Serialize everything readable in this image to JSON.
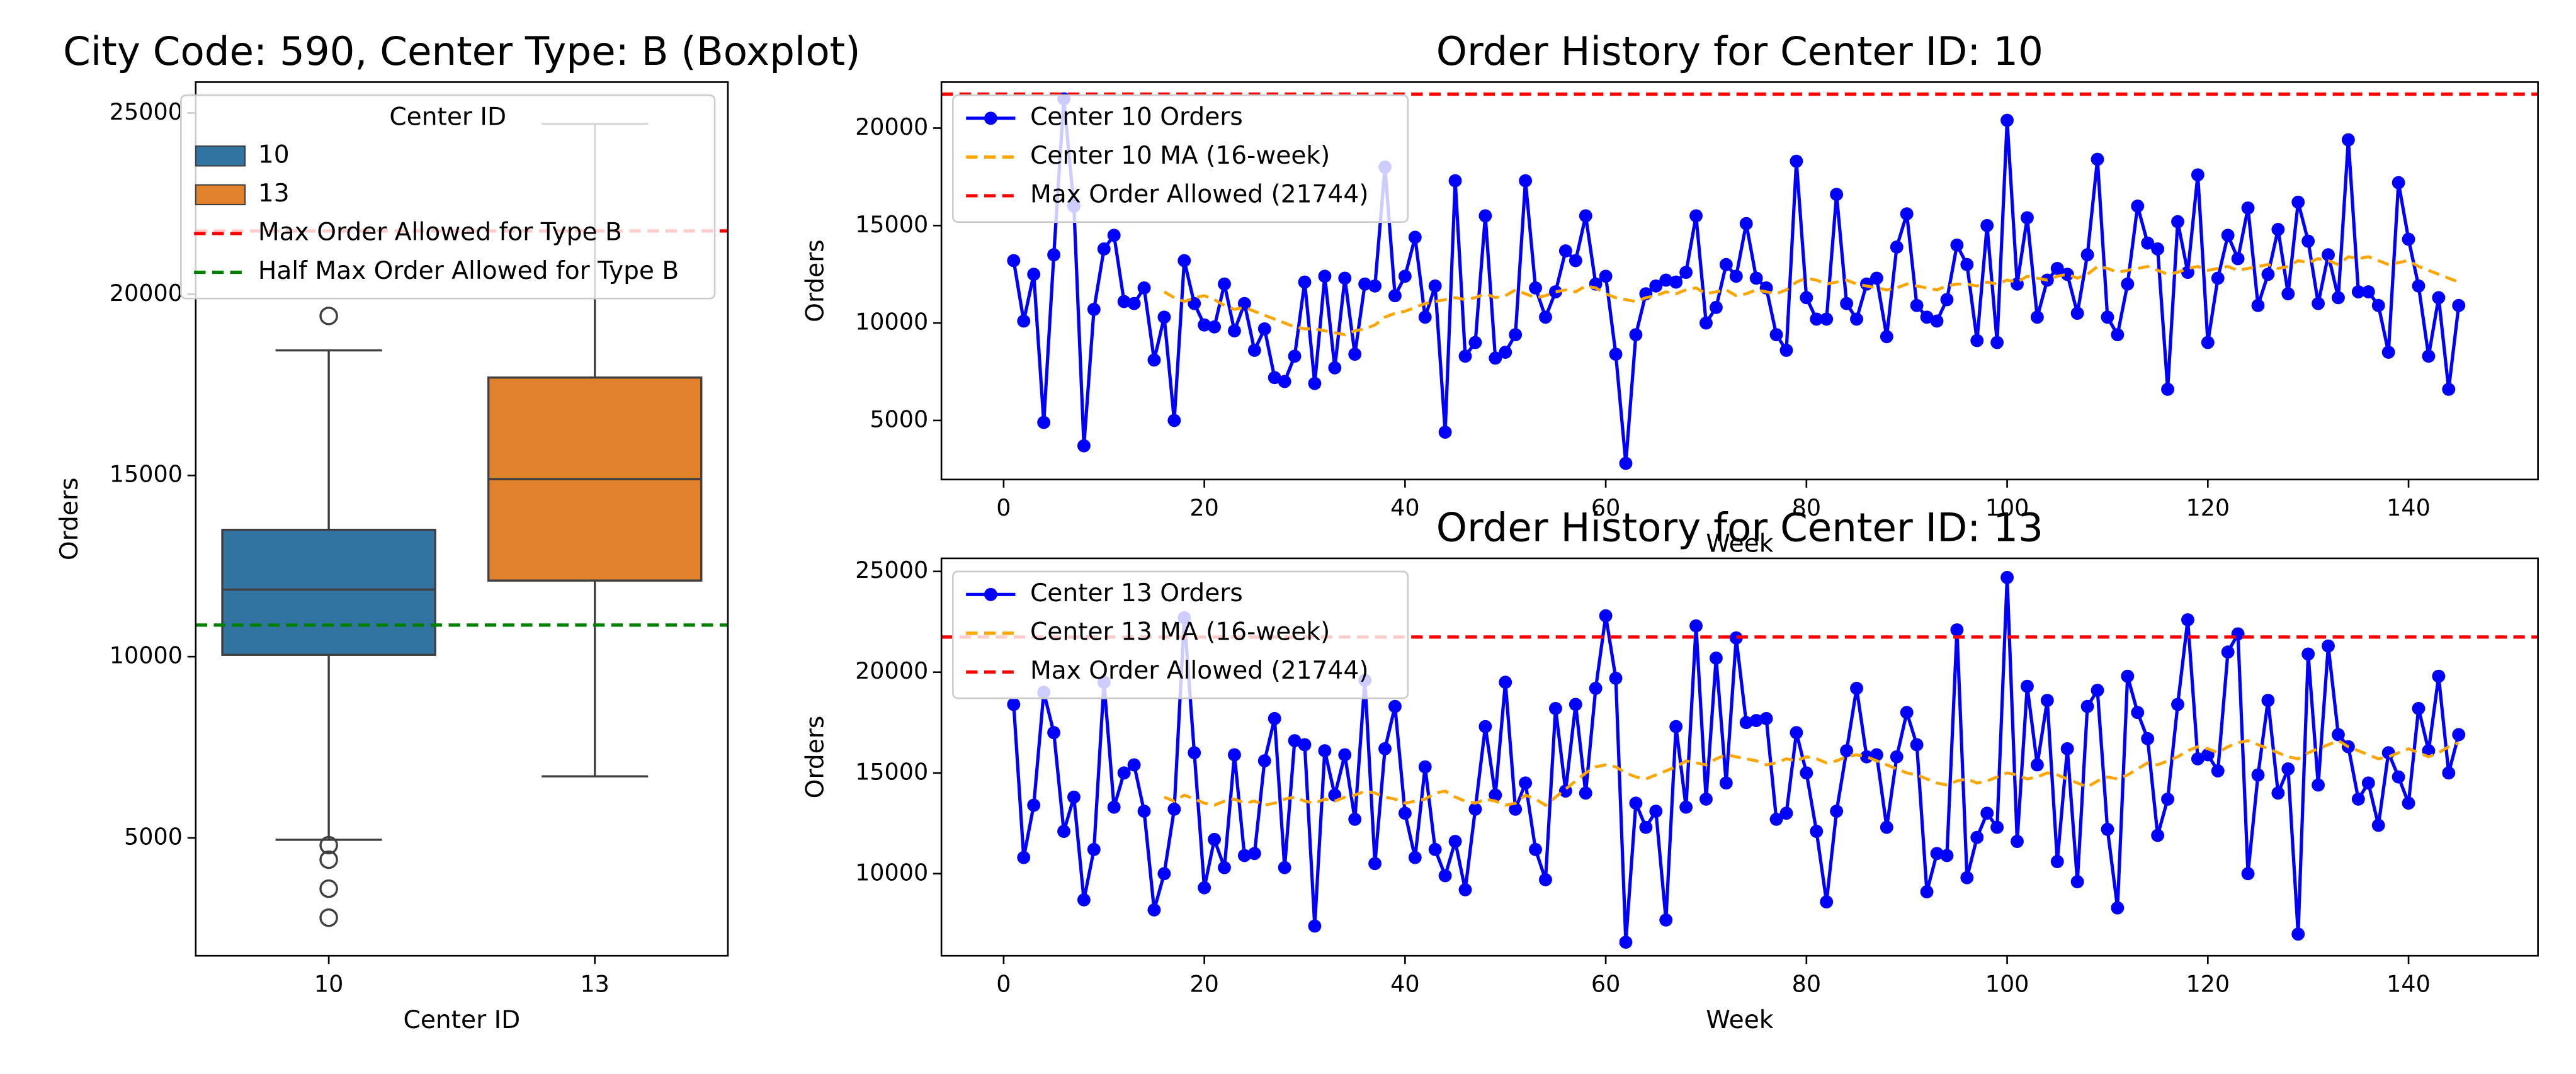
{
  "chart_data": [
    {
      "type": "box",
      "title": "City Code: 590, Center Type: B (Boxplot)",
      "xlabel": "Center ID",
      "ylabel": "Orders",
      "categories": [
        "10",
        "13"
      ],
      "boxes": [
        {
          "whislo": 4950,
          "q1": 10050,
          "med": 11850,
          "q3": 13500,
          "whishi": 18450,
          "fliers": [
            19400,
            4800,
            4400,
            3600,
            2800
          ],
          "color": "#3274a1"
        },
        {
          "whislo": 6700,
          "q1": 12100,
          "med": 14900,
          "q3": 17700,
          "whishi": 24700,
          "fliers": [],
          "color": "#e1812c"
        }
      ],
      "ylim": [
        1750,
        25850
      ],
      "yticks": [
        5000,
        10000,
        15000,
        20000,
        25000
      ],
      "hlines": [
        {
          "name": "Max Order Allowed for Type B",
          "value": 21744,
          "color": "#ff0000"
        },
        {
          "name": "Half Max Order Allowed for Type B",
          "value": 10872,
          "color": "#008000"
        }
      ],
      "legend_title": "Center ID",
      "legend": "upper left"
    },
    {
      "type": "line",
      "title": "Order History for Center ID: 10",
      "xlabel": "Week",
      "ylabel": "Orders",
      "x": [
        1,
        2,
        3,
        4,
        5,
        6,
        7,
        8,
        9,
        10,
        11,
        12,
        13,
        14,
        15,
        16,
        17,
        18,
        19,
        20,
        21,
        22,
        23,
        24,
        25,
        26,
        27,
        28,
        29,
        30,
        31,
        32,
        33,
        34,
        35,
        36,
        37,
        38,
        39,
        40,
        41,
        42,
        43,
        44,
        45,
        46,
        47,
        48,
        49,
        50,
        51,
        52,
        53,
        54,
        55,
        56,
        57,
        58,
        59,
        60,
        61,
        62,
        63,
        64,
        65,
        66,
        67,
        68,
        69,
        70,
        71,
        72,
        73,
        74,
        75,
        76,
        77,
        78,
        79,
        80,
        81,
        82,
        83,
        84,
        85,
        86,
        87,
        88,
        89,
        90,
        91,
        92,
        93,
        94,
        95,
        96,
        97,
        98,
        99,
        100,
        101,
        102,
        103,
        104,
        105,
        106,
        107,
        108,
        109,
        110,
        111,
        112,
        113,
        114,
        115,
        116,
        117,
        118,
        119,
        120,
        121,
        122,
        123,
        124,
        125,
        126,
        127,
        128,
        129,
        130,
        131,
        132,
        133,
        134,
        135,
        136,
        137,
        138,
        139,
        140,
        141,
        142,
        143,
        144,
        145
      ],
      "series": [
        {
          "name": "Center 10 Orders",
          "color": "#0000ff",
          "linestyle": "solid",
          "marker": "o",
          "values": [
            13200,
            10100,
            12500,
            4900,
            13500,
            21500,
            16000,
            3700,
            10700,
            13800,
            14500,
            11100,
            11000,
            11800,
            8100,
            10300,
            5000,
            13200,
            11000,
            9900,
            9800,
            12000,
            9600,
            11000,
            8600,
            9700,
            7200,
            7000,
            8300,
            12100,
            6900,
            12400,
            7700,
            12300,
            8400,
            12000,
            11900,
            18000,
            11400,
            12400,
            14400,
            10300,
            11900,
            4400,
            17300,
            8300,
            9000,
            15500,
            8200,
            8500,
            9400,
            17300,
            11800,
            10300,
            11600,
            13700,
            13200,
            15500,
            12000,
            12400,
            8400,
            2800,
            9400,
            11500,
            11900,
            12200,
            12100,
            12600,
            15500,
            10000,
            10800,
            13000,
            12400,
            15100,
            12300,
            11800,
            9400,
            8600,
            18300,
            11300,
            10200,
            10200,
            16600,
            11000,
            10200,
            12000,
            12300,
            9300,
            13900,
            15600,
            10900,
            10300,
            10100,
            11200,
            14000,
            13000,
            9100,
            15000,
            9000,
            20400,
            12000,
            15400,
            10300,
            12200,
            12800,
            12500,
            10500,
            13500,
            18400,
            10300,
            9400,
            12000,
            16000,
            14100,
            13800,
            6600,
            15200,
            12600,
            17600,
            9000,
            12300,
            14500,
            13300,
            15900,
            10900,
            12500,
            14800,
            11500,
            16200,
            14200,
            11000,
            13500,
            11300,
            19400,
            11600,
            11600,
            10900,
            8500,
            17200,
            14300,
            11900,
            8300,
            11300,
            6600,
            10900
          ]
        },
        {
          "name": "Center 10 MA (16-week)",
          "color": "#ffa500",
          "linestyle": "dashed",
          "marker": "none",
          "values": [
            null,
            null,
            null,
            null,
            null,
            null,
            null,
            null,
            null,
            null,
            null,
            null,
            null,
            null,
            null,
            11600,
            11300,
            11100,
            11300,
            11400,
            11200,
            10900,
            10700,
            10800,
            10600,
            10400,
            10200,
            10000,
            9800,
            9700,
            9700,
            9600,
            9500,
            9400,
            9600,
            9700,
            9900,
            10300,
            10500,
            10600,
            10800,
            11000,
            11100,
            11200,
            11300,
            11200,
            11300,
            11500,
            11300,
            11400,
            11700,
            11500,
            11300,
            11400,
            11600,
            11700,
            11600,
            11900,
            11800,
            11500,
            11300,
            11200,
            11100,
            11300,
            11400,
            11600,
            11500,
            11700,
            11800,
            11500,
            11600,
            11700,
            11400,
            11500,
            11700,
            11600,
            11500,
            11700,
            12100,
            12300,
            12200,
            12000,
            12100,
            12200,
            12000,
            11900,
            11800,
            11700,
            11800,
            12000,
            11900,
            11800,
            11700,
            11900,
            12000,
            12000,
            11900,
            12100,
            12000,
            12200,
            12100,
            12400,
            12300,
            12200,
            12400,
            12500,
            12300,
            12500,
            12900,
            12800,
            12600,
            12700,
            12800,
            12900,
            12700,
            12500,
            12600,
            12800,
            12900,
            12700,
            12800,
            12900,
            12700,
            12800,
            12900,
            13000,
            12800,
            12900,
            13200,
            13100,
            13300,
            13200,
            13000,
            13400,
            13300,
            13400,
            13200,
            13000,
            13100,
            13200,
            12900,
            12700,
            12500,
            12300,
            12100
          ]
        }
      ],
      "hlines": [
        {
          "name": "Max Order Allowed (21744)",
          "value": 21744,
          "color": "#ff0000"
        }
      ],
      "xlim": [
        -6.2,
        152.9
      ],
      "xticks": [
        0,
        20,
        40,
        60,
        80,
        100,
        120,
        140
      ],
      "ylim": [
        1970,
        22360
      ],
      "yticks": [
        5000,
        10000,
        15000,
        20000
      ],
      "legend": "upper left"
    },
    {
      "type": "line",
      "title": "Order History for Center ID: 13",
      "xlabel": "Week",
      "ylabel": "Orders",
      "x": [
        1,
        2,
        3,
        4,
        5,
        6,
        7,
        8,
        9,
        10,
        11,
        12,
        13,
        14,
        15,
        16,
        17,
        18,
        19,
        20,
        21,
        22,
        23,
        24,
        25,
        26,
        27,
        28,
        29,
        30,
        31,
        32,
        33,
        34,
        35,
        36,
        37,
        38,
        39,
        40,
        41,
        42,
        43,
        44,
        45,
        46,
        47,
        48,
        49,
        50,
        51,
        52,
        53,
        54,
        55,
        56,
        57,
        58,
        59,
        60,
        61,
        62,
        63,
        64,
        65,
        66,
        67,
        68,
        69,
        70,
        71,
        72,
        73,
        74,
        75,
        76,
        77,
        78,
        79,
        80,
        81,
        82,
        83,
        84,
        85,
        86,
        87,
        88,
        89,
        90,
        91,
        92,
        93,
        94,
        95,
        96,
        97,
        98,
        99,
        100,
        101,
        102,
        103,
        104,
        105,
        106,
        107,
        108,
        109,
        110,
        111,
        112,
        113,
        114,
        115,
        116,
        117,
        118,
        119,
        120,
        121,
        122,
        123,
        124,
        125,
        126,
        127,
        128,
        129,
        130,
        131,
        132,
        133,
        134,
        135,
        136,
        137,
        138,
        139,
        140,
        141,
        142,
        143,
        144,
        145
      ],
      "series": [
        {
          "name": "Center 13 Orders",
          "color": "#0000ff",
          "linestyle": "solid",
          "marker": "o",
          "values": [
            18400,
            10800,
            13400,
            19000,
            17000,
            12100,
            13800,
            8700,
            11200,
            19500,
            13300,
            15000,
            15400,
            13100,
            8200,
            10000,
            13200,
            22700,
            16000,
            9300,
            11700,
            10300,
            15900,
            10900,
            11000,
            15600,
            17700,
            10300,
            16600,
            16400,
            7400,
            16100,
            13900,
            15900,
            12700,
            19600,
            10500,
            16200,
            18300,
            13000,
            10800,
            15300,
            11200,
            9900,
            11600,
            9200,
            13200,
            17300,
            13900,
            19500,
            13200,
            14500,
            11200,
            9700,
            18200,
            14100,
            18400,
            14000,
            19200,
            22800,
            19700,
            6600,
            13500,
            12300,
            13100,
            7700,
            17300,
            13300,
            22300,
            13700,
            20700,
            14500,
            21700,
            17500,
            17600,
            17700,
            12700,
            13000,
            17000,
            15000,
            12100,
            8600,
            13100,
            16100,
            19200,
            15800,
            15900,
            12300,
            15800,
            18000,
            16400,
            9100,
            11000,
            10900,
            22100,
            9800,
            11800,
            13000,
            12300,
            24700,
            11600,
            19300,
            15400,
            18600,
            10600,
            16200,
            9600,
            18300,
            19100,
            12200,
            8300,
            19800,
            18000,
            16700,
            11900,
            13700,
            18400,
            22600,
            15700,
            15900,
            15100,
            21000,
            21900,
            10000,
            14900,
            18600,
            14000,
            15200,
            7000,
            20900,
            14400,
            21300,
            16900,
            16300,
            13700,
            14500,
            12400,
            16000,
            14800,
            13500,
            18200,
            16100,
            19800,
            15000,
            16900
          ]
        },
        {
          "name": "Center 13 MA (16-week)",
          "color": "#ffa500",
          "linestyle": "dashed",
          "marker": "none",
          "values": [
            null,
            null,
            null,
            null,
            null,
            null,
            null,
            null,
            null,
            null,
            null,
            null,
            null,
            null,
            null,
            13800,
            13600,
            13900,
            13700,
            13500,
            13400,
            13600,
            13700,
            13500,
            13600,
            13400,
            13500,
            13700,
            13800,
            13600,
            13500,
            13700,
            13600,
            13800,
            13900,
            14100,
            14000,
            13800,
            13700,
            13500,
            13600,
            13700,
            14000,
            14100,
            13800,
            13600,
            13500,
            13700,
            13600,
            13400,
            13500,
            13900,
            13700,
            13400,
            13800,
            14200,
            14600,
            15000,
            15300,
            15400,
            15300,
            15000,
            14800,
            14700,
            14900,
            15100,
            15300,
            15600,
            15500,
            15400,
            15700,
            15900,
            15800,
            15700,
            15600,
            15400,
            15500,
            15700,
            15600,
            15800,
            15700,
            15500,
            15600,
            15800,
            15900,
            15800,
            15600,
            15400,
            15200,
            15000,
            14900,
            14700,
            14500,
            14400,
            14600,
            14700,
            14500,
            14600,
            14800,
            15000,
            14900,
            14700,
            14800,
            15000,
            14900,
            14700,
            14500,
            14300,
            14600,
            14800,
            14700,
            14900,
            15200,
            15500,
            15400,
            15600,
            15800,
            16100,
            16300,
            16200,
            16000,
            16300,
            16500,
            16600,
            16400,
            16200,
            16000,
            15800,
            15700,
            16000,
            16200,
            16400,
            16600,
            16300,
            16100,
            15900,
            15700,
            15800,
            16000,
            16200,
            16000,
            15800,
            16000,
            16300,
            16500
          ]
        }
      ],
      "hlines": [
        {
          "name": "Max Order Allowed (21744)",
          "value": 21744,
          "color": "#ff0000"
        }
      ],
      "xlim": [
        -6.2,
        152.9
      ],
      "xticks": [
        0,
        20,
        40,
        60,
        80,
        100,
        120,
        140
      ],
      "ylim": [
        5925,
        25650
      ],
      "yticks": [
        10000,
        15000,
        20000,
        25000
      ],
      "legend": "upper left"
    }
  ]
}
